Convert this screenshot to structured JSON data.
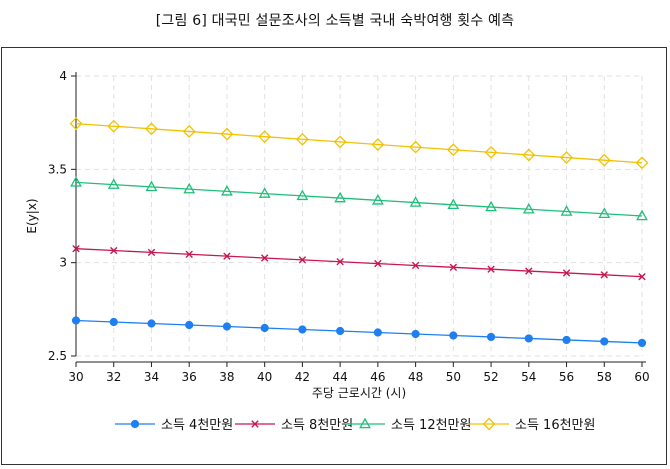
{
  "figure": {
    "title": "[그림 6] 대국민 설문조사의 소득별 국내 숙박여행 횟수 예측"
  },
  "chart_data": {
    "type": "line",
    "xlabel": "주당 근로시간 (시)",
    "ylabel": "E(y|x)",
    "xlim": [
      30,
      60
    ],
    "ylim": [
      2.5,
      4
    ],
    "x_ticks": [
      "30",
      "32",
      "34",
      "36",
      "38",
      "40",
      "42",
      "44",
      "46",
      "48",
      "50",
      "52",
      "54",
      "56",
      "58",
      "60"
    ],
    "y_ticks": [
      "2.5",
      "3",
      "3.5",
      "4"
    ],
    "grid": true,
    "legend_position": "bottom",
    "x": [
      30,
      32,
      34,
      36,
      38,
      40,
      42,
      44,
      46,
      48,
      50,
      52,
      54,
      56,
      58,
      60
    ],
    "series": [
      {
        "name": "소득 4천만원",
        "color": "#1f7ff0",
        "marker": "circle",
        "values": [
          2.69,
          2.682,
          2.674,
          2.666,
          2.658,
          2.65,
          2.642,
          2.634,
          2.626,
          2.618,
          2.61,
          2.602,
          2.594,
          2.586,
          2.578,
          2.57
        ]
      },
      {
        "name": "소득 8천만원",
        "color": "#c8174f",
        "marker": "x",
        "values": [
          3.075,
          3.065,
          3.055,
          3.045,
          3.035,
          3.025,
          3.015,
          3.005,
          2.995,
          2.985,
          2.975,
          2.965,
          2.955,
          2.945,
          2.935,
          2.925
        ]
      },
      {
        "name": "소득 12천만원",
        "color": "#1fbf7a",
        "marker": "triangle",
        "values": [
          3.43,
          3.418,
          3.406,
          3.394,
          3.382,
          3.37,
          3.358,
          3.346,
          3.334,
          3.322,
          3.31,
          3.298,
          3.286,
          3.274,
          3.262,
          3.25
        ]
      },
      {
        "name": "소득 16천만원",
        "color": "#f2c200",
        "marker": "diamond",
        "values": [
          3.745,
          3.731,
          3.717,
          3.703,
          3.689,
          3.675,
          3.661,
          3.647,
          3.633,
          3.619,
          3.605,
          3.591,
          3.577,
          3.563,
          3.549,
          3.535
        ]
      }
    ]
  }
}
